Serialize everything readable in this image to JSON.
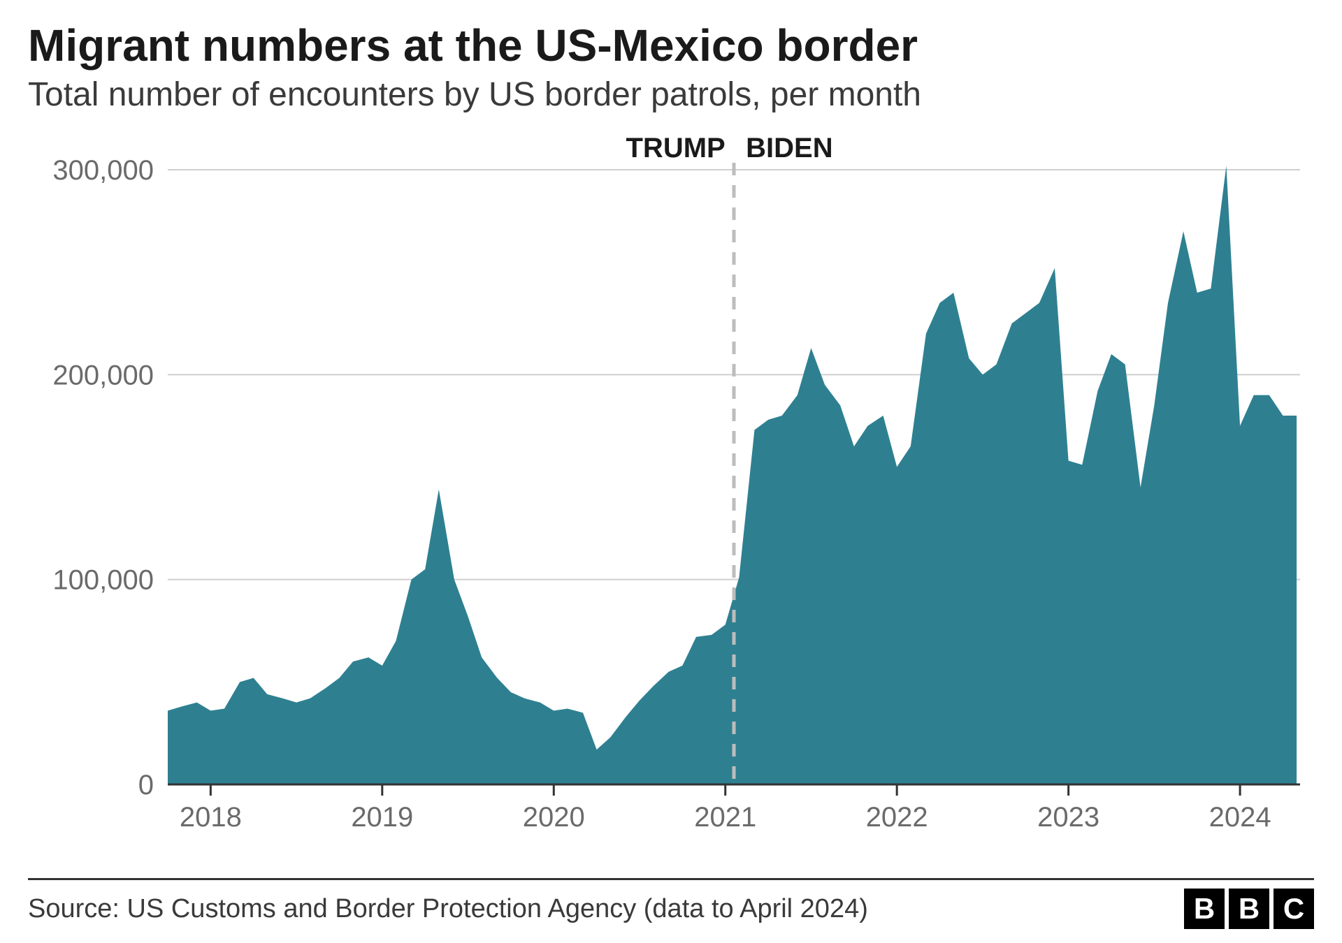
{
  "title": "Migrant numbers at the US-Mexico border",
  "subtitle": "Total number of encounters by US border patrols, per month",
  "source": "Source: US Customs and Border Protection Agency (data to April 2024)",
  "logo_letters": [
    "B",
    "B",
    "C"
  ],
  "chart": {
    "type": "area",
    "fill_color": "#2e8091",
    "background_color": "#ffffff",
    "grid_color": "#cfcfcf",
    "axis_color": "#333333",
    "label_color": "#6a6a6a",
    "annotation_color": "#1a1a1a",
    "divider_color": "#bdbdbd",
    "ylim": [
      0,
      300000
    ],
    "yticks": [
      0,
      100000,
      200000,
      300000
    ],
    "ytick_labels": [
      "0",
      "100,000",
      "200,000",
      "300,000"
    ],
    "label_fontsize": 40,
    "annotation_fontsize": 40,
    "x_start": 2017.75,
    "x_end": 2024.35,
    "xticks": [
      2018,
      2019,
      2020,
      2021,
      2022,
      2023,
      2024
    ],
    "xtick_labels": [
      "2018",
      "2019",
      "2020",
      "2021",
      "2022",
      "2023",
      "2024"
    ],
    "divider_x": 2021.05,
    "annotations": [
      {
        "text": "TRUMP",
        "x": 2021.0,
        "align": "end"
      },
      {
        "text": "BIDEN",
        "x": 2021.12,
        "align": "start"
      }
    ],
    "series": [
      {
        "x": 2017.75,
        "y": 36000
      },
      {
        "x": 2017.83,
        "y": 38000
      },
      {
        "x": 2017.92,
        "y": 40000
      },
      {
        "x": 2018.0,
        "y": 36000
      },
      {
        "x": 2018.08,
        "y": 37000
      },
      {
        "x": 2018.17,
        "y": 50000
      },
      {
        "x": 2018.25,
        "y": 52000
      },
      {
        "x": 2018.33,
        "y": 44000
      },
      {
        "x": 2018.42,
        "y": 42000
      },
      {
        "x": 2018.5,
        "y": 40000
      },
      {
        "x": 2018.58,
        "y": 42000
      },
      {
        "x": 2018.67,
        "y": 47000
      },
      {
        "x": 2018.75,
        "y": 52000
      },
      {
        "x": 2018.83,
        "y": 60000
      },
      {
        "x": 2018.92,
        "y": 62000
      },
      {
        "x": 2019.0,
        "y": 58000
      },
      {
        "x": 2019.08,
        "y": 70000
      },
      {
        "x": 2019.17,
        "y": 100000
      },
      {
        "x": 2019.25,
        "y": 105000
      },
      {
        "x": 2019.33,
        "y": 144000
      },
      {
        "x": 2019.42,
        "y": 100000
      },
      {
        "x": 2019.5,
        "y": 82000
      },
      {
        "x": 2019.58,
        "y": 62000
      },
      {
        "x": 2019.67,
        "y": 52000
      },
      {
        "x": 2019.75,
        "y": 45000
      },
      {
        "x": 2019.83,
        "y": 42000
      },
      {
        "x": 2019.92,
        "y": 40000
      },
      {
        "x": 2020.0,
        "y": 36000
      },
      {
        "x": 2020.08,
        "y": 37000
      },
      {
        "x": 2020.17,
        "y": 35000
      },
      {
        "x": 2020.25,
        "y": 17000
      },
      {
        "x": 2020.33,
        "y": 23000
      },
      {
        "x": 2020.42,
        "y": 33000
      },
      {
        "x": 2020.5,
        "y": 41000
      },
      {
        "x": 2020.58,
        "y": 48000
      },
      {
        "x": 2020.67,
        "y": 55000
      },
      {
        "x": 2020.75,
        "y": 58000
      },
      {
        "x": 2020.83,
        "y": 72000
      },
      {
        "x": 2020.92,
        "y": 73000
      },
      {
        "x": 2021.0,
        "y": 78000
      },
      {
        "x": 2021.08,
        "y": 101000
      },
      {
        "x": 2021.17,
        "y": 173000
      },
      {
        "x": 2021.25,
        "y": 178000
      },
      {
        "x": 2021.33,
        "y": 180000
      },
      {
        "x": 2021.42,
        "y": 190000
      },
      {
        "x": 2021.5,
        "y": 213000
      },
      {
        "x": 2021.58,
        "y": 195000
      },
      {
        "x": 2021.67,
        "y": 185000
      },
      {
        "x": 2021.75,
        "y": 165000
      },
      {
        "x": 2021.83,
        "y": 175000
      },
      {
        "x": 2021.92,
        "y": 180000
      },
      {
        "x": 2022.0,
        "y": 155000
      },
      {
        "x": 2022.08,
        "y": 165000
      },
      {
        "x": 2022.17,
        "y": 220000
      },
      {
        "x": 2022.25,
        "y": 235000
      },
      {
        "x": 2022.33,
        "y": 240000
      },
      {
        "x": 2022.42,
        "y": 208000
      },
      {
        "x": 2022.5,
        "y": 200000
      },
      {
        "x": 2022.58,
        "y": 205000
      },
      {
        "x": 2022.67,
        "y": 225000
      },
      {
        "x": 2022.75,
        "y": 230000
      },
      {
        "x": 2022.83,
        "y": 235000
      },
      {
        "x": 2022.92,
        "y": 252000
      },
      {
        "x": 2023.0,
        "y": 158000
      },
      {
        "x": 2023.08,
        "y": 156000
      },
      {
        "x": 2023.17,
        "y": 192000
      },
      {
        "x": 2023.25,
        "y": 210000
      },
      {
        "x": 2023.33,
        "y": 205000
      },
      {
        "x": 2023.42,
        "y": 145000
      },
      {
        "x": 2023.5,
        "y": 185000
      },
      {
        "x": 2023.58,
        "y": 235000
      },
      {
        "x": 2023.67,
        "y": 270000
      },
      {
        "x": 2023.75,
        "y": 240000
      },
      {
        "x": 2023.83,
        "y": 242000
      },
      {
        "x": 2023.92,
        "y": 302000
      },
      {
        "x": 2024.0,
        "y": 175000
      },
      {
        "x": 2024.08,
        "y": 190000
      },
      {
        "x": 2024.17,
        "y": 190000
      },
      {
        "x": 2024.25,
        "y": 180000
      },
      {
        "x": 2024.33,
        "y": 180000
      }
    ]
  }
}
